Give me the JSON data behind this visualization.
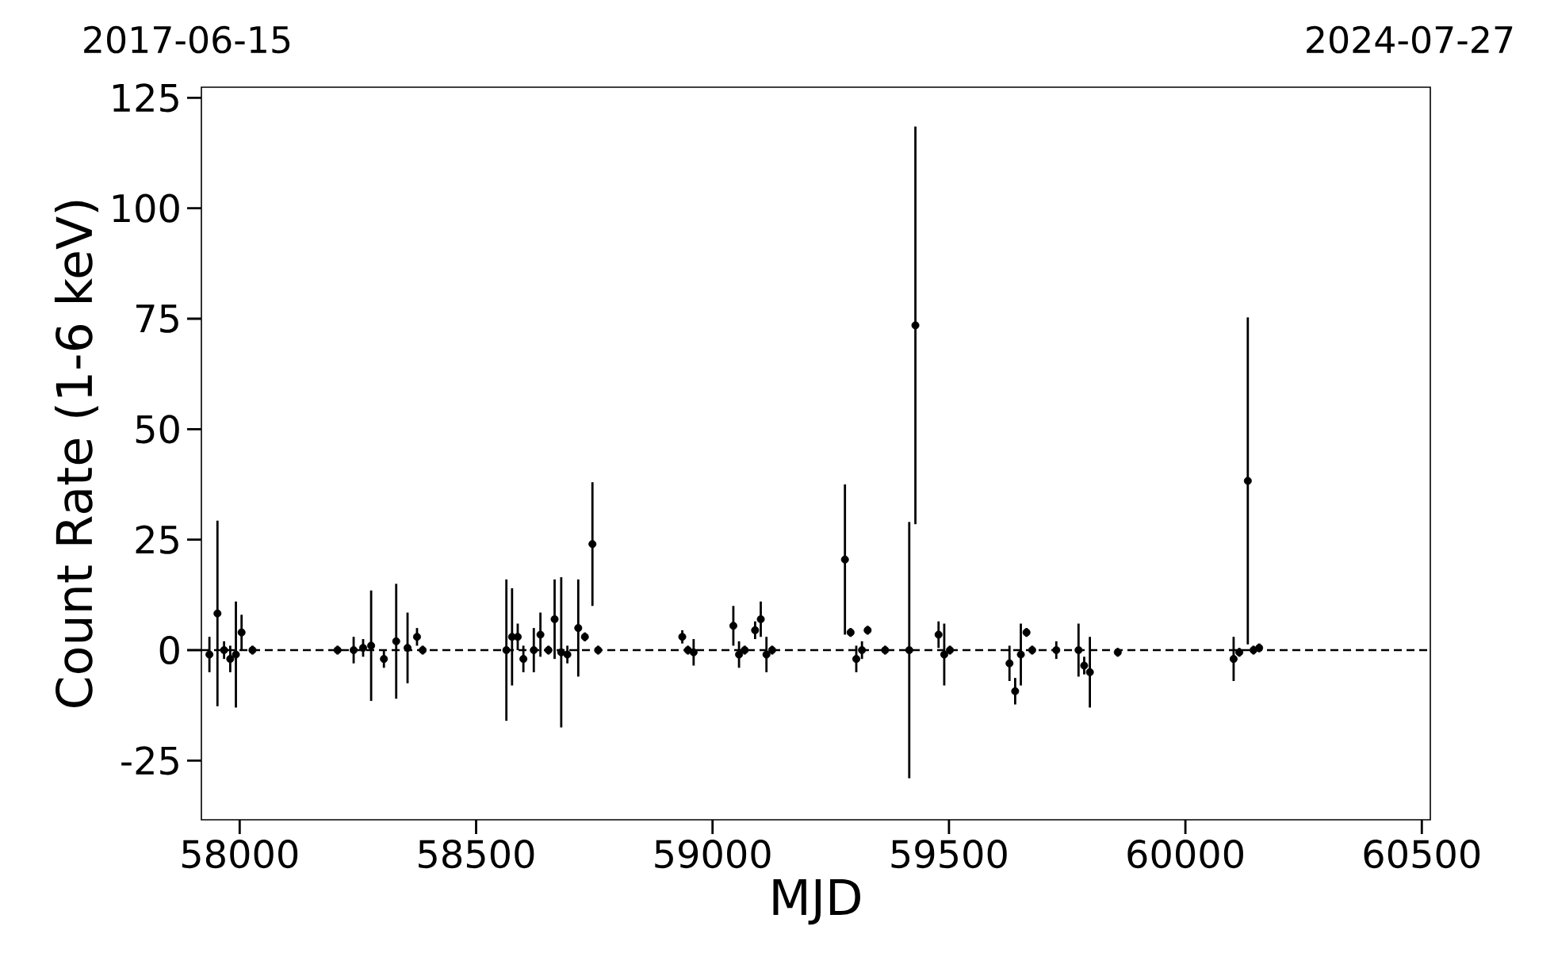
{
  "chart_data": {
    "type": "scatter",
    "xlabel": "MJD",
    "ylabel": "Count Rate (1-6 keV)",
    "annotations": [
      "2017-06-15",
      "2024-07-27"
    ],
    "xlim": [
      57919,
      60518
    ],
    "ylim": [
      -38.4,
      127.4
    ],
    "xticks": [
      58000,
      58500,
      59000,
      59500,
      60000,
      60500
    ],
    "yticks": [
      -25,
      0,
      25,
      50,
      75,
      100,
      125
    ],
    "grid": false,
    "marker": "circle",
    "ref_lines": [
      {
        "axis": "y",
        "value": 0,
        "color": "#000000",
        "line_style": "dashed"
      }
    ],
    "series": [
      {
        "color": "#000000",
        "x": [
          57936,
          57953,
          57967,
          57980,
          57992,
          58004,
          58027,
          58207,
          58241,
          58261,
          58278,
          58305,
          58331,
          58355,
          58375,
          58387,
          58564,
          58576,
          58588,
          58600,
          58622,
          58636,
          58653,
          58666,
          58680,
          58693,
          58716,
          58730,
          58746,
          58758,
          58936,
          58948,
          58960,
          59044,
          59056,
          59068,
          59090,
          59102,
          59114,
          59126,
          59280,
          59292,
          59304,
          59316,
          59328,
          59365,
          59416,
          59429,
          59478,
          59490,
          59502,
          59628,
          59640,
          59652,
          59664,
          59676,
          59727,
          59774,
          59786,
          59798,
          59857,
          60102,
          60114,
          60132,
          60144,
          60156
        ],
        "values": [
          -1,
          8.3,
          0,
          -2,
          -1,
          4,
          0,
          0,
          0,
          0.5,
          1,
          -2,
          2,
          0.5,
          3,
          0,
          0,
          3,
          3,
          -2,
          0,
          3.5,
          0,
          7,
          -0.5,
          -1,
          5,
          3,
          24,
          0,
          3,
          0,
          -0.5,
          5.5,
          -1,
          0,
          4.5,
          7,
          -1,
          0,
          20.5,
          4,
          -2,
          0,
          4.5,
          0,
          0,
          73.5,
          3.5,
          -1,
          0,
          -3,
          -9.3,
          -1,
          4,
          0,
          0,
          0,
          -3.5,
          -5,
          -0.5,
          -2,
          -0.5,
          38.3,
          0,
          0.5
        ],
        "errors": [
          4,
          21,
          2,
          3,
          12,
          4,
          1,
          1,
          3,
          2,
          12.5,
          2,
          13,
          8,
          2,
          1,
          16,
          11,
          3,
          3,
          5,
          5,
          1,
          9,
          17,
          2,
          11,
          1,
          14,
          1,
          1.5,
          1,
          3,
          4.5,
          3,
          1,
          2,
          4,
          4,
          1,
          17,
          1,
          3,
          2,
          1,
          1,
          29,
          45,
          3,
          7,
          1,
          4,
          3,
          7,
          1,
          1,
          2,
          6,
          2,
          8,
          1,
          5,
          1,
          37,
          1,
          1
        ]
      }
    ]
  }
}
